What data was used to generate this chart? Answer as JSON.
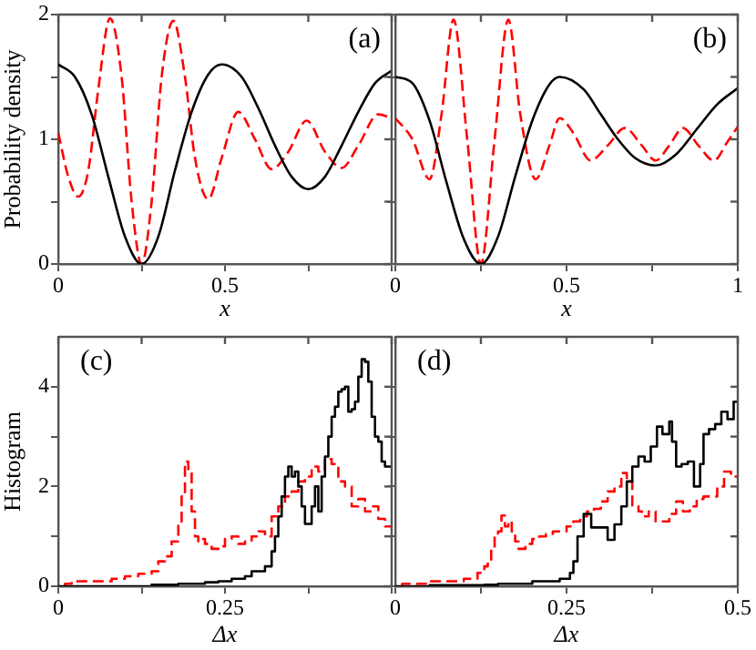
{
  "chart_data": [
    {
      "type": "line",
      "ylabel": "Probability density",
      "xlabel": "x",
      "annotations": [
        "(a)"
      ],
      "xlim": [
        0,
        1
      ],
      "ylim": [
        0,
        2
      ],
      "xticks": [
        0,
        {
          "value": 0.25,
          "label": null
        },
        0.5,
        {
          "value": 0.75,
          "label": null
        },
        {
          "value": 1,
          "label": null
        }
      ],
      "yticks": [
        0,
        {
          "value": 0.5,
          "label": null
        },
        1,
        {
          "value": 1.5,
          "label": null
        },
        2
      ],
      "grid": false,
      "legend": false,
      "series": [
        {
          "color": "#000000",
          "line_style": "solid",
          "x": [
            0,
            0.05,
            0.1,
            0.15,
            0.2,
            0.25,
            0.3,
            0.35,
            0.4,
            0.45,
            0.49,
            0.55,
            0.6,
            0.65,
            0.7,
            0.75,
            0.8,
            0.85,
            0.9,
            0.95,
            1
          ],
          "values": [
            1.6,
            1.5,
            1.2,
            0.7,
            0.22,
            0,
            0.22,
            0.75,
            1.22,
            1.52,
            1.6,
            1.5,
            1.25,
            0.95,
            0.7,
            0.6,
            0.7,
            0.95,
            1.22,
            1.45,
            1.55
          ]
        },
        {
          "color": "#ff0000",
          "line_style": "dashed",
          "x": [
            0,
            0.03,
            0.06,
            0.09,
            0.12,
            0.155,
            0.19,
            0.22,
            0.25,
            0.28,
            0.31,
            0.345,
            0.38,
            0.41,
            0.45,
            0.49,
            0.54,
            0.59,
            0.64,
            0.69,
            0.745,
            0.8,
            0.85,
            0.9,
            0.96,
            1
          ],
          "values": [
            1.05,
            0.7,
            0.54,
            0.75,
            1.4,
            1.97,
            1.5,
            0.5,
            0,
            0.5,
            1.5,
            1.95,
            1.5,
            0.85,
            0.52,
            0.85,
            1.22,
            1.0,
            0.76,
            0.9,
            1.15,
            0.9,
            0.77,
            0.95,
            1.2,
            1.17
          ]
        }
      ]
    },
    {
      "type": "line",
      "xlabel": "x",
      "annotations": [
        "(b)"
      ],
      "tick_labels": "x",
      "xlim": [
        0,
        1
      ],
      "ylim": [
        0,
        2
      ],
      "xticks": [
        0,
        {
          "value": 0.25,
          "label": null
        },
        0.5,
        {
          "value": 0.75,
          "label": null
        },
        1
      ],
      "yticks": [
        0,
        {
          "value": 0.5,
          "label": null
        },
        1,
        {
          "value": 1.5,
          "label": null
        },
        2
      ],
      "grid": false,
      "legend": false,
      "series": [
        {
          "color": "#000000",
          "line_style": "solid",
          "x": [
            0,
            0.05,
            0.1,
            0.15,
            0.2,
            0.25,
            0.3,
            0.35,
            0.4,
            0.45,
            0.48,
            0.55,
            0.6,
            0.65,
            0.7,
            0.76,
            0.82,
            0.88,
            0.94,
            1
          ],
          "values": [
            1.5,
            1.45,
            1.15,
            0.65,
            0.2,
            0,
            0.22,
            0.7,
            1.15,
            1.44,
            1.5,
            1.4,
            1.2,
            1.0,
            0.85,
            0.79,
            0.88,
            1.08,
            1.28,
            1.41
          ]
        },
        {
          "color": "#ff0000",
          "line_style": "dashed",
          "x": [
            0,
            0.05,
            0.1,
            0.135,
            0.17,
            0.21,
            0.25,
            0.29,
            0.33,
            0.365,
            0.41,
            0.45,
            0.48,
            0.52,
            0.57,
            0.62,
            0.67,
            0.72,
            0.76,
            0.8,
            0.84,
            0.885,
            0.93,
            0.97,
            1
          ],
          "values": [
            1.17,
            1.0,
            0.68,
            1.2,
            1.96,
            1.0,
            0,
            1.0,
            1.96,
            1.2,
            0.68,
            0.95,
            1.17,
            1.05,
            0.83,
            0.95,
            1.09,
            0.95,
            0.83,
            0.95,
            1.09,
            0.95,
            0.83,
            0.98,
            1.1
          ]
        }
      ]
    },
    {
      "type": "step",
      "ylabel": "Histogram",
      "xlabel": "Δx",
      "annotations": [
        "(c)"
      ],
      "xlim": [
        0,
        0.5
      ],
      "ylim": [
        0,
        5
      ],
      "xticks": [
        0,
        {
          "value": 0.125,
          "label": null
        },
        0.25,
        {
          "value": 0.375,
          "label": null
        },
        {
          "value": 0.5,
          "label": null
        }
      ],
      "yticks": [
        0,
        {
          "value": 1,
          "label": null
        },
        2,
        {
          "value": 3,
          "label": null
        },
        4
      ],
      "grid": false,
      "legend": false,
      "series": [
        {
          "color": "#000000",
          "line_style": "solid",
          "x": [
            0,
            0.02,
            0.04,
            0.06,
            0.08,
            0.1,
            0.12,
            0.14,
            0.16,
            0.18,
            0.2,
            0.22,
            0.24,
            0.26,
            0.28,
            0.29,
            0.3,
            0.31,
            0.32,
            0.325,
            0.33,
            0.335,
            0.34,
            0.345,
            0.35,
            0.355,
            0.36,
            0.365,
            0.37,
            0.375,
            0.38,
            0.385,
            0.39,
            0.395,
            0.4,
            0.405,
            0.41,
            0.415,
            0.42,
            0.425,
            0.43,
            0.435,
            0.44,
            0.445,
            0.45,
            0.455,
            0.46,
            0.465,
            0.47,
            0.475,
            0.48,
            0.485,
            0.49,
            0.495,
            0.5
          ],
          "values": [
            0,
            0,
            0,
            0,
            0,
            0,
            0,
            0,
            0.03,
            0.03,
            0.05,
            0.05,
            0.08,
            0.1,
            0.15,
            0.2,
            0.3,
            0.3,
            0.4,
            0.7,
            1.0,
            1.4,
            1.8,
            2.2,
            2.4,
            2.2,
            2.3,
            2.0,
            1.6,
            1.25,
            1.25,
            1.6,
            2.0,
            1.5,
            2.2,
            2.6,
            3.0,
            3.4,
            3.6,
            3.9,
            3.95,
            4.0,
            3.5,
            3.55,
            3.7,
            4.2,
            4.55,
            4.5,
            4.1,
            3.4,
            3.0,
            2.9,
            2.5,
            2.4,
            2.4
          ]
        },
        {
          "color": "#ff0000",
          "line_style": "dashed",
          "x": [
            0.01,
            0.02,
            0.05,
            0.08,
            0.1,
            0.12,
            0.14,
            0.15,
            0.16,
            0.17,
            0.18,
            0.185,
            0.19,
            0.195,
            0.2,
            0.205,
            0.21,
            0.215,
            0.22,
            0.23,
            0.24,
            0.25,
            0.26,
            0.27,
            0.28,
            0.29,
            0.3,
            0.31,
            0.32,
            0.33,
            0.34,
            0.35,
            0.36,
            0.37,
            0.38,
            0.39,
            0.4,
            0.41,
            0.42,
            0.43,
            0.44,
            0.45,
            0.46,
            0.47,
            0.48,
            0.49,
            0.495,
            0.5
          ],
          "values": [
            0,
            0.05,
            0.1,
            0.1,
            0.15,
            0.2,
            0.25,
            0.3,
            0.5,
            0.6,
            0.9,
            1.3,
            1.8,
            2.5,
            2.3,
            1.5,
            1.0,
            0.9,
            0.95,
            0.85,
            0.75,
            0.8,
            0.95,
            1.0,
            0.85,
            0.9,
            1.0,
            1.1,
            1.0,
            1.4,
            1.6,
            1.8,
            1.9,
            2.1,
            2.2,
            2.4,
            2.3,
            2.55,
            2.45,
            2.1,
            2.0,
            1.6,
            1.75,
            1.5,
            1.6,
            1.35,
            1.2,
            1.2
          ]
        }
      ]
    },
    {
      "type": "step",
      "xlabel": "Δx",
      "annotations": [
        "(d)"
      ],
      "tick_labels": "x",
      "xlim": [
        0,
        0.5
      ],
      "ylim": [
        0,
        5
      ],
      "xticks": [
        0,
        {
          "value": 0.125,
          "label": null
        },
        0.25,
        {
          "value": 0.375,
          "label": null
        },
        0.5
      ],
      "yticks": [
        0,
        {
          "value": 1,
          "label": null
        },
        2,
        {
          "value": 3,
          "label": null
        },
        4
      ],
      "grid": false,
      "legend": false,
      "series": [
        {
          "color": "#000000",
          "line_style": "solid",
          "x": [
            0,
            0.05,
            0.1,
            0.13,
            0.15,
            0.2,
            0.22,
            0.24,
            0.255,
            0.26,
            0.266,
            0.275,
            0.286,
            0.31,
            0.32,
            0.33,
            0.338,
            0.346,
            0.355,
            0.364,
            0.373,
            0.382,
            0.39,
            0.4,
            0.404,
            0.41,
            0.418,
            0.427,
            0.436,
            0.445,
            0.45,
            0.458,
            0.467,
            0.476,
            0.485,
            0.494,
            0.5
          ],
          "values": [
            0,
            0,
            0.02,
            0.02,
            0.03,
            0.05,
            0.1,
            0.1,
            0.15,
            0.27,
            0.5,
            1.0,
            1.45,
            1.18,
            0.93,
            1.24,
            1.6,
            2.1,
            2.4,
            2.6,
            2.5,
            2.8,
            3.2,
            3.05,
            3.3,
            2.9,
            2.4,
            2.45,
            2.5,
            2.0,
            2.45,
            3.05,
            3.15,
            3.25,
            3.5,
            3.35,
            3.7
          ]
        },
        {
          "color": "#ff0000",
          "line_style": "dashed",
          "x": [
            0.01,
            0.05,
            0.1,
            0.12,
            0.13,
            0.135,
            0.14,
            0.145,
            0.15,
            0.155,
            0.16,
            0.165,
            0.17,
            0.175,
            0.18,
            0.19,
            0.2,
            0.21,
            0.22,
            0.23,
            0.24,
            0.25,
            0.26,
            0.27,
            0.28,
            0.29,
            0.3,
            0.31,
            0.32,
            0.33,
            0.338,
            0.346,
            0.355,
            0.36,
            0.37,
            0.38,
            0.39,
            0.4,
            0.41,
            0.42,
            0.43,
            0.44,
            0.45,
            0.46,
            0.47,
            0.48,
            0.49,
            0.5
          ],
          "values": [
            0,
            0.05,
            0.1,
            0.15,
            0.27,
            0.4,
            0.5,
            0.75,
            1.0,
            1.1,
            1.42,
            1.2,
            1.3,
            1.1,
            0.9,
            0.75,
            0.85,
            0.95,
            1.0,
            1.05,
            1.1,
            1.1,
            1.2,
            1.3,
            1.4,
            1.5,
            1.55,
            1.7,
            1.9,
            2.0,
            2.27,
            2.1,
            1.6,
            1.5,
            1.4,
            1.5,
            1.3,
            1.3,
            1.45,
            1.7,
            1.5,
            1.6,
            1.75,
            1.8,
            1.8,
            2.0,
            2.3,
            2.2
          ]
        }
      ]
    }
  ]
}
